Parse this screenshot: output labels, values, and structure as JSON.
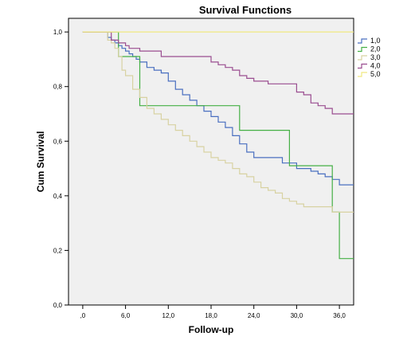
{
  "chart_data": {
    "type": "line",
    "step": true,
    "title": "Survival Functions",
    "xlabel": "Follow-up",
    "ylabel": "Cum Survival",
    "xlim": [
      -2,
      38
    ],
    "ylim": [
      0,
      1.05
    ],
    "x_ticks": [
      0,
      6,
      12,
      18,
      24,
      30,
      36
    ],
    "x_tick_labels": [
      ",0",
      "6,0",
      "12,0",
      "18,0",
      "24,0",
      "30,0",
      "36,0"
    ],
    "y_ticks": [
      0,
      0.2,
      0.4,
      0.6,
      0.8,
      1.0
    ],
    "y_tick_labels": [
      "0,0",
      "0,2",
      "0,4",
      "0,6",
      "0,8",
      "1,0"
    ],
    "grid": false,
    "legend_position": "right",
    "plot_background": "#f0f0f0",
    "series": [
      {
        "name": "1,0",
        "color": "#4a6fc0",
        "x": [
          0,
          3.5,
          4,
          4.5,
          5,
          5.5,
          6,
          6.5,
          7,
          7.5,
          8,
          9,
          10,
          11,
          12,
          13,
          14,
          15,
          16,
          17,
          18,
          19,
          20,
          21,
          22,
          23,
          24,
          26,
          28,
          30,
          32,
          33,
          34,
          35,
          36,
          38
        ],
        "y": [
          1.0,
          0.98,
          0.97,
          0.96,
          0.95,
          0.94,
          0.93,
          0.92,
          0.91,
          0.9,
          0.89,
          0.87,
          0.86,
          0.85,
          0.82,
          0.79,
          0.77,
          0.75,
          0.73,
          0.71,
          0.69,
          0.67,
          0.65,
          0.62,
          0.59,
          0.56,
          0.54,
          0.54,
          0.52,
          0.5,
          0.49,
          0.48,
          0.47,
          0.46,
          0.44,
          0.44
        ]
      },
      {
        "name": "2,0",
        "color": "#45b045",
        "x": [
          0,
          5,
          8,
          11,
          22,
          29,
          35,
          36,
          38
        ],
        "y": [
          1.0,
          0.91,
          0.73,
          0.73,
          0.64,
          0.51,
          0.34,
          0.17,
          0.17
        ]
      },
      {
        "name": "3,0",
        "color": "#d8d2a2",
        "x": [
          0,
          3.5,
          4,
          4.5,
          5,
          5.5,
          6,
          7,
          8,
          9,
          10,
          11,
          12,
          13,
          14,
          15,
          16,
          17,
          18,
          19,
          20,
          21,
          22,
          23,
          24,
          25,
          26,
          27,
          28,
          29,
          30,
          31,
          32,
          33,
          34,
          35,
          36,
          38
        ],
        "y": [
          1.0,
          0.97,
          0.96,
          0.94,
          0.91,
          0.86,
          0.84,
          0.79,
          0.76,
          0.72,
          0.7,
          0.68,
          0.66,
          0.64,
          0.62,
          0.6,
          0.58,
          0.56,
          0.54,
          0.53,
          0.52,
          0.5,
          0.48,
          0.47,
          0.45,
          0.43,
          0.42,
          0.41,
          0.39,
          0.38,
          0.37,
          0.36,
          0.36,
          0.36,
          0.36,
          0.34,
          0.34,
          0.34
        ]
      },
      {
        "name": "4,0",
        "color": "#9a4d90",
        "x": [
          0,
          4,
          5,
          6,
          6.5,
          8,
          11,
          18,
          19,
          20,
          21,
          22,
          23,
          24,
          26,
          30,
          31,
          32,
          33,
          34,
          35,
          37,
          38
        ],
        "y": [
          1.0,
          0.97,
          0.96,
          0.95,
          0.94,
          0.93,
          0.91,
          0.89,
          0.88,
          0.87,
          0.86,
          0.84,
          0.83,
          0.82,
          0.81,
          0.78,
          0.77,
          0.74,
          0.73,
          0.72,
          0.7,
          0.7,
          0.7
        ]
      },
      {
        "name": "5,0",
        "color": "#f0e880",
        "x": [
          0,
          38
        ],
        "y": [
          1.0,
          1.0
        ]
      }
    ]
  }
}
